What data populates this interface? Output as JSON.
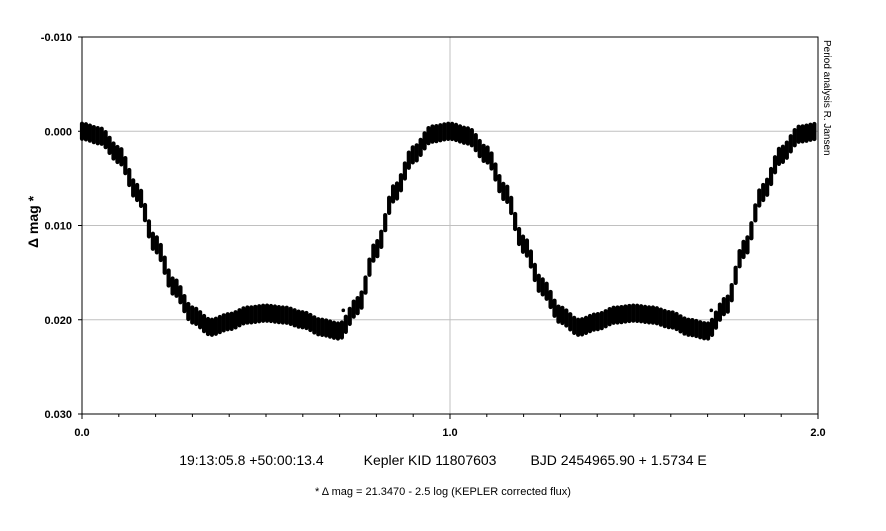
{
  "chart_data": {
    "type": "scatter",
    "title": "",
    "xlabel": "",
    "ylabel": "Δ mag *",
    "xlim": [
      0.0,
      2.0
    ],
    "ylim": [
      0.03,
      -0.01
    ],
    "y_inverted": true,
    "x_ticks": [
      "0.0",
      "1.0",
      "2.0"
    ],
    "y_ticks": [
      "-0.010",
      "0.000",
      "0.010",
      "0.020",
      "0.030"
    ],
    "grid": true,
    "marker_color": "#000000",
    "side_label": "Period analysis  R. Jansen",
    "caption": {
      "coords": "19:13:05.8 +50:00:13.4",
      "target": "Kepler KID 11807603",
      "ephemeris": "BJD 2454965.90 + 1.5734 E"
    },
    "footnote": "* Δ mag = 21.3470 - 2.5 log (KEPLER corrected flux)",
    "phase_curve": {
      "phase": [
        0.0,
        0.05,
        0.1,
        0.15,
        0.2,
        0.25,
        0.3,
        0.35,
        0.4,
        0.45,
        0.5,
        0.55,
        0.6,
        0.65,
        0.7,
        0.75,
        0.8,
        0.85,
        0.9,
        0.95,
        1.0
      ],
      "delta_mag": [
        0.0,
        0.0005,
        0.0025,
        0.0065,
        0.012,
        0.0165,
        0.0195,
        0.0208,
        0.0202,
        0.0195,
        0.0193,
        0.0195,
        0.02,
        0.0208,
        0.0212,
        0.0185,
        0.0125,
        0.0065,
        0.0025,
        0.0003,
        0.0
      ],
      "scatter_half_range": 0.0008
    },
    "outliers": [
      {
        "phase": 0.71,
        "delta_mag": 0.019
      },
      {
        "phase": 1.71,
        "delta_mag": 0.019
      }
    ]
  }
}
